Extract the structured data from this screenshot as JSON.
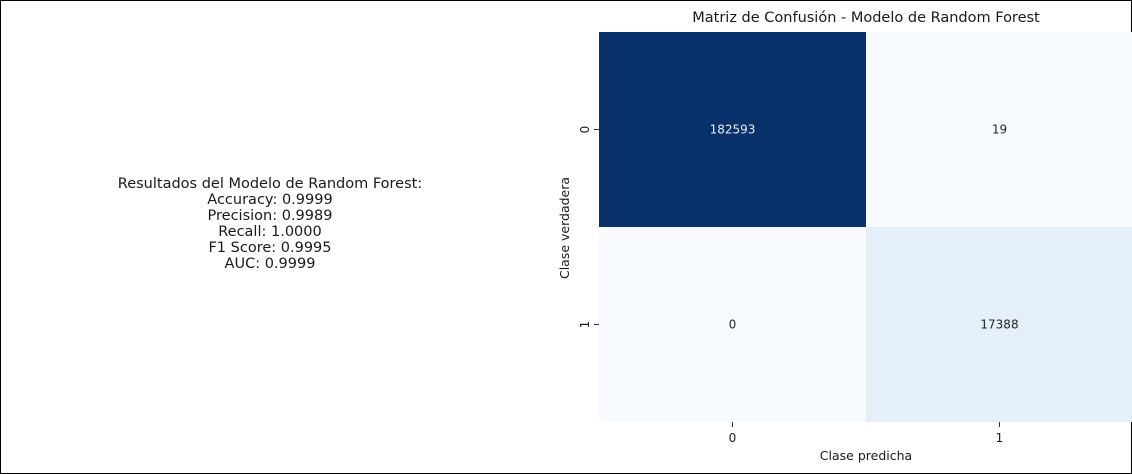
{
  "results": {
    "title": "Resultados del Modelo de Random Forest:",
    "lines": [
      {
        "label": "Accuracy",
        "value": "0.9999"
      },
      {
        "label": "Precision",
        "value": "0.9989"
      },
      {
        "label": "Recall",
        "value": "1.0000"
      },
      {
        "label": "F1 Score",
        "value": "0.9995"
      },
      {
        "label": "AUC",
        "value": "0.9999"
      }
    ]
  },
  "chart_data": {
    "type": "heatmap",
    "title": "Matriz de Confusión - Modelo de Random Forest",
    "xlabel": "Clase predicha",
    "ylabel": "Clase verdadera",
    "x_categories": [
      "0",
      "1"
    ],
    "y_categories": [
      "0",
      "1"
    ],
    "values": [
      [
        182593,
        19
      ],
      [
        0,
        17388
      ]
    ],
    "colormap": "Blues",
    "colorbar": false,
    "annotations": true
  }
}
